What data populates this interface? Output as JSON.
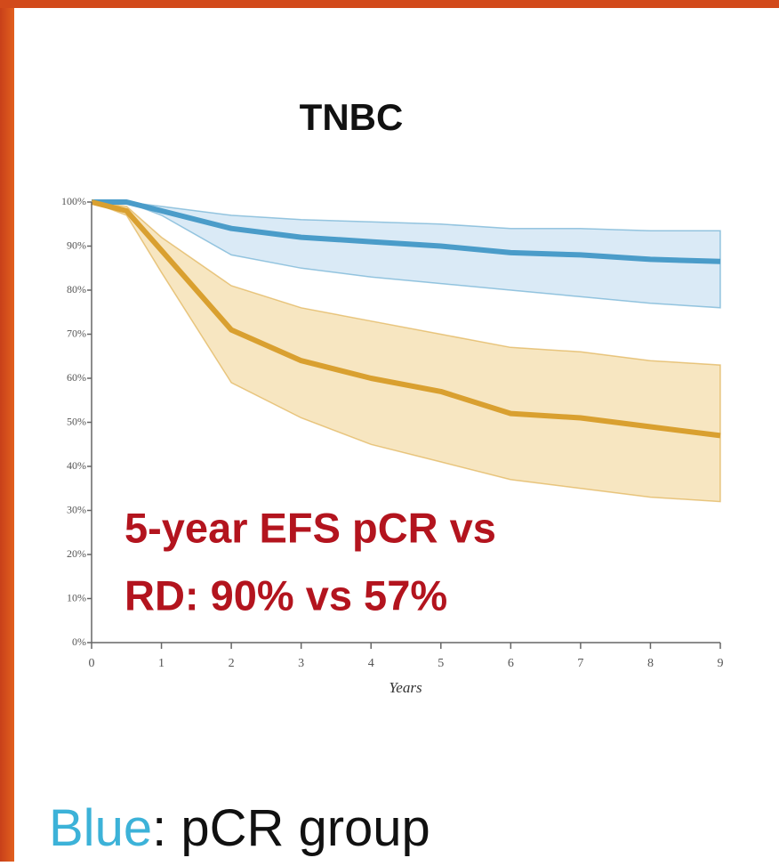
{
  "chart_data": {
    "type": "line",
    "title": "TNBC",
    "xlabel": "Years",
    "x": [
      0,
      0.5,
      1,
      2,
      3,
      4,
      5,
      6,
      7,
      8,
      9
    ],
    "series": [
      {
        "color": "#4a9cc9",
        "band_color": "#d3e6f4",
        "values": [
          100,
          100,
          98,
          94,
          92,
          91,
          90,
          88.5,
          88,
          87,
          86.5
        ],
        "upper": [
          100,
          100,
          99,
          97,
          96,
          95.5,
          95,
          94,
          94,
          93.5,
          93.5
        ],
        "lower": [
          100,
          100,
          97,
          88,
          85,
          83,
          81.5,
          80,
          78.5,
          77,
          76
        ]
      },
      {
        "color": "#d9a030",
        "band_color": "#f6e2b6",
        "values": [
          100,
          98,
          89,
          71,
          64,
          60,
          57,
          52,
          51,
          49,
          47
        ],
        "upper": [
          100,
          99,
          92,
          81,
          76,
          73,
          70,
          67,
          66,
          64,
          63
        ],
        "lower": [
          100,
          97,
          84,
          59,
          51,
          45,
          41,
          37,
          35,
          33,
          32
        ]
      }
    ],
    "xlim": [
      0,
      9
    ],
    "xticks": [
      0,
      1,
      2,
      3,
      4,
      5,
      6,
      7,
      8,
      9
    ],
    "ylim": [
      0,
      100
    ],
    "yticks": [
      {
        "value": 0,
        "label": "0%"
      },
      {
        "value": 10,
        "label": "10%"
      },
      {
        "value": 20,
        "label": "20%"
      },
      {
        "value": 30,
        "label": "30%"
      },
      {
        "value": 40,
        "label": "40%"
      },
      {
        "value": 50,
        "label": "50%"
      },
      {
        "value": 60,
        "label": "60%"
      },
      {
        "value": 70,
        "label": "70%"
      },
      {
        "value": 80,
        "label": "80%"
      },
      {
        "value": 90,
        "label": "90%"
      },
      {
        "value": 100,
        "label": "100%"
      }
    ],
    "annotation": [
      "5-year EFS pCR vs",
      "RD: 90% vs 57%"
    ]
  },
  "caption": {
    "highlight": "Blue",
    "text": ": pCR group"
  }
}
